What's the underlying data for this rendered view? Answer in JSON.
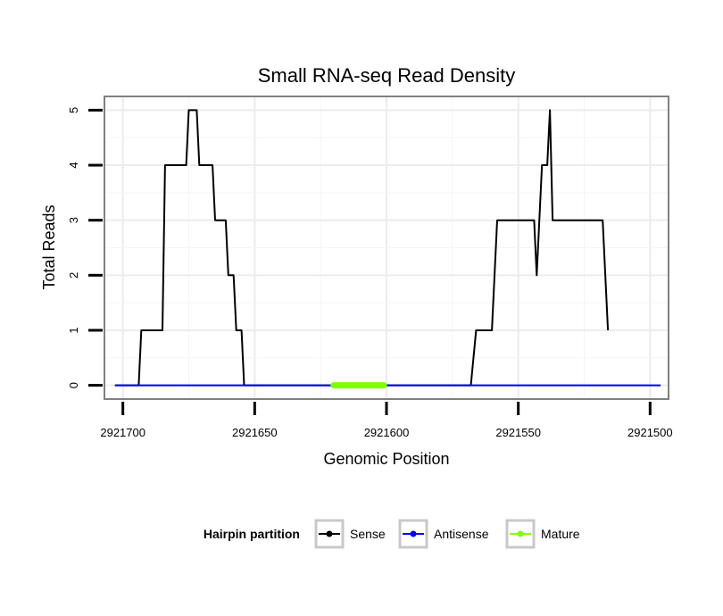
{
  "chart_data": {
    "type": "line",
    "title": "Small RNA-seq Read Density",
    "xlabel": "Genomic Position",
    "ylabel": "Total Reads",
    "xlim": [
      2921707,
      2921493
    ],
    "ylim": [
      -0.25,
      5.25
    ],
    "xticks": [
      2921700,
      2921650,
      2921600,
      2921550,
      2921500
    ],
    "yticks": [
      0,
      1,
      2,
      3,
      4,
      5
    ],
    "grid": true,
    "legend_position": "bottom",
    "legend": {
      "title": "Hairpin partition",
      "items": [
        {
          "name": "Sense",
          "color": "#000000"
        },
        {
          "name": "Antisense",
          "color": "#0000ff"
        },
        {
          "name": "Mature",
          "color": "#7fff00"
        }
      ]
    },
    "series": [
      {
        "name": "Sense",
        "color": "#000000",
        "x": [
          2921703,
          2921694,
          2921693,
          2921685,
          2921684,
          2921676,
          2921675,
          2921672,
          2921671,
          2921666,
          2921665,
          2921661,
          2921660,
          2921658,
          2921657,
          2921655,
          2921654,
          2921652,
          2921651,
          2921647,
          2921568,
          2921566,
          2921560,
          2921558,
          2921544,
          2921543,
          2921541,
          2921539,
          2921538,
          2921537,
          2921535,
          2921518,
          2921516
        ],
        "values": [
          0,
          0,
          1,
          1,
          4,
          4,
          5,
          5,
          4,
          4,
          3,
          3,
          2,
          2,
          1,
          1,
          0,
          0,
          0,
          0,
          0,
          1,
          1,
          3,
          3,
          2,
          4,
          4,
          5,
          3,
          3,
          3,
          1
        ]
      },
      {
        "name": "Antisense",
        "color": "#0000ff",
        "x": [
          2921703,
          2921496
        ],
        "values": [
          0,
          0
        ]
      },
      {
        "name": "Mature",
        "color": "#7fff00",
        "x": [
          2921620,
          2921601
        ],
        "values": [
          0,
          0
        ]
      }
    ]
  }
}
